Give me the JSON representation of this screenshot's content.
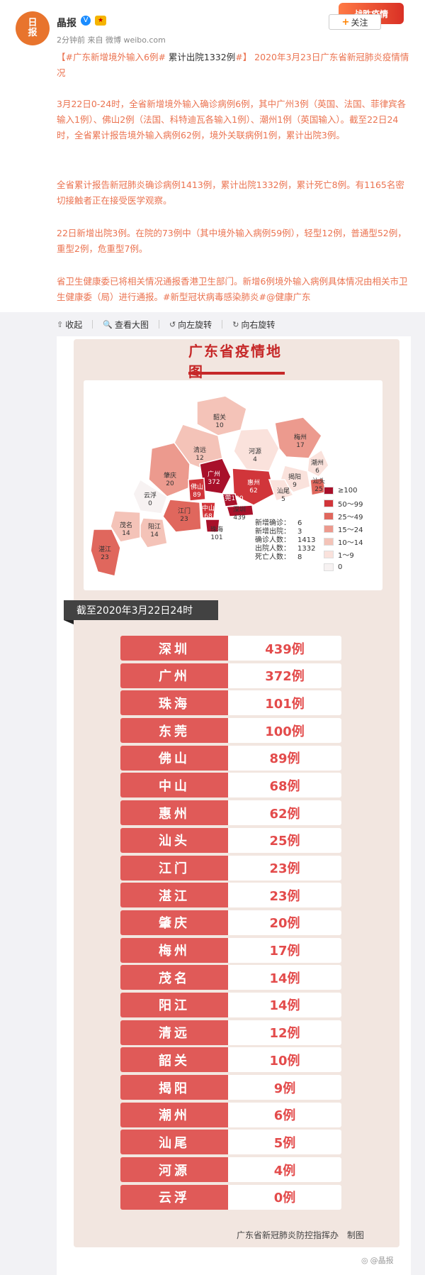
{
  "post": {
    "username": "晶报",
    "verified_badge": "V",
    "medal_icon": "medal-icon",
    "meta": "2分钟前 来自 微博 weibo.com",
    "promo": "战胜疫情",
    "follow_label": "关注",
    "para1_a": "【",
    "para1_tag1": "#广东新增境外输入6例#",
    "para1_b": " 累计出院1332例",
    "para1_tag2": "#】",
    "para1_c": " 2020年3月23日广东省新冠肺炎疫情情况",
    "para2": "3月22日0-24时，全省新增境外输入确诊病例6例，其中广州3例（英国、法国、菲律宾各输入1例）、佛山2例（法国、科特迪瓦各输入1例）、潮州1例（英国输入）。截至22日24时，全省累计报告境外输入病例62例，境外关联病例1例，累计出院3例。",
    "para3": "全省累计报告新冠肺炎确诊病例1413例，累计出院1332例，累计死亡8例。有1165名密切接触者正在接受医学观察。",
    "para4": "22日新增出院3例。在院的73例中（其中境外输入病例59例），轻型12例，普通型52例，重型2例，危重型7例。",
    "para5_a": "省卫生健康委已将相关情况通报香港卫生部门。新增6例境外输入病例具体情况由相关市卫生健康委（局）进行通报。",
    "para5_tag": "#新型冠状病毒感染肺炎#",
    "para5_at": "@健康广东"
  },
  "toolbar": {
    "collapse": "收起",
    "view_large": "查看大图",
    "rotate_left": "向左旋转",
    "rotate_right": "向右旋转"
  },
  "infographic": {
    "title": "广东省疫情地图",
    "banner": "截至2020年3月22日24时",
    "footer": "广东省新冠肺炎防控指挥办　制图",
    "stats": [
      {
        "k": "新增确诊：",
        "v": "6"
      },
      {
        "k": "新增出院：",
        "v": "3"
      },
      {
        "k": "确诊人数：",
        "v": "1413"
      },
      {
        "k": "出院人数：",
        "v": "1332"
      },
      {
        "k": "死亡人数：",
        "v": "8"
      }
    ],
    "legend": [
      {
        "label": "≥100",
        "color": "#a8102a"
      },
      {
        "label": "50～99",
        "color": "#d1353a"
      },
      {
        "label": "25～49",
        "color": "#e0675d"
      },
      {
        "label": "15～24",
        "color": "#ec9a8e"
      },
      {
        "label": "10～14",
        "color": "#f4c3b8"
      },
      {
        "label": "1～9",
        "color": "#fae2dc"
      },
      {
        "label": "0",
        "color": "#f7f2f2"
      }
    ],
    "cities": [
      {
        "name": "深圳",
        "count": "439例"
      },
      {
        "name": "广州",
        "count": "372例"
      },
      {
        "name": "珠海",
        "count": "101例"
      },
      {
        "name": "东莞",
        "count": "100例"
      },
      {
        "name": "佛山",
        "count": "89例"
      },
      {
        "name": "中山",
        "count": "68例"
      },
      {
        "name": "惠州",
        "count": "62例"
      },
      {
        "name": "汕头",
        "count": "25例"
      },
      {
        "name": "江门",
        "count": "23例"
      },
      {
        "name": "湛江",
        "count": "23例"
      },
      {
        "name": "肇庆",
        "count": "20例"
      },
      {
        "name": "梅州",
        "count": "17例"
      },
      {
        "name": "茂名",
        "count": "14例"
      },
      {
        "name": "阳江",
        "count": "14例"
      },
      {
        "name": "清远",
        "count": "12例"
      },
      {
        "name": "韶关",
        "count": "10例"
      },
      {
        "name": "揭阳",
        "count": "9例"
      },
      {
        "name": "潮州",
        "count": "6例"
      },
      {
        "name": "汕尾",
        "count": "5例"
      },
      {
        "name": "河源",
        "count": "4例"
      },
      {
        "name": "云浮",
        "count": "0例"
      }
    ],
    "map_labels": [
      {
        "name": "韶关",
        "v": "10"
      },
      {
        "name": "清远",
        "v": "12"
      },
      {
        "name": "河源",
        "v": "4"
      },
      {
        "name": "梅州",
        "v": "17"
      },
      {
        "name": "潮州",
        "v": "6"
      },
      {
        "name": "揭阳",
        "v": "9"
      },
      {
        "name": "汕头",
        "v": "25"
      },
      {
        "name": "肇庆",
        "v": "20"
      },
      {
        "name": "广州",
        "v": "372"
      },
      {
        "name": "惠州",
        "v": "62"
      },
      {
        "name": "佛山",
        "v": "89"
      },
      {
        "name": "东莞",
        "v": "100"
      },
      {
        "name": "汕尾",
        "v": "5"
      },
      {
        "name": "云浮",
        "v": "0"
      },
      {
        "name": "深圳",
        "v": "439"
      },
      {
        "name": "中山",
        "v": "68"
      },
      {
        "name": "江门",
        "v": "23"
      },
      {
        "name": "珠海",
        "v": "101"
      },
      {
        "name": "茂名",
        "v": "14"
      },
      {
        "name": "阳江",
        "v": "14"
      },
      {
        "name": "湛江",
        "v": "23"
      }
    ]
  },
  "watermark": "@晶报"
}
